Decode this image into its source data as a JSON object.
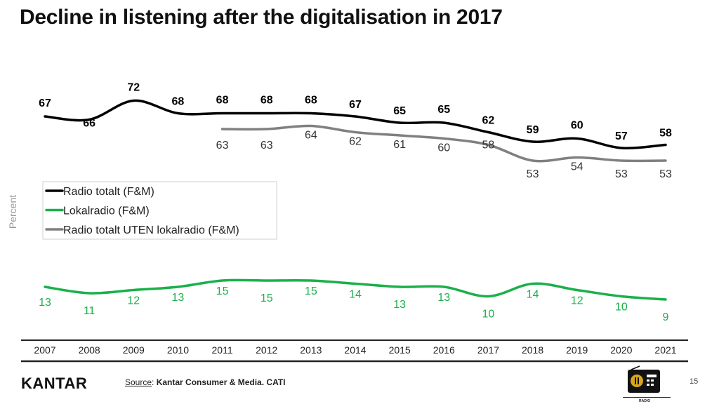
{
  "title": "Decline in listening after the digitalisation in 2017",
  "chart_data": {
    "type": "line",
    "title": "Decline in listening after the digitalisation in 2017",
    "ylabel": "Percent",
    "xlabel": "",
    "ylim": [
      0,
      100
    ],
    "grid": false,
    "legend_position": "left-middle",
    "categories": [
      "2007",
      "2008",
      "2009",
      "2010",
      "2011",
      "2012",
      "2013",
      "2014",
      "2015",
      "2016",
      "2017",
      "2018",
      "2019",
      "2020",
      "2021"
    ],
    "series": [
      {
        "name": "Radio totalt (F&M)",
        "color": "#000000",
        "label_color": "#000000",
        "bold": true,
        "values": [
          67,
          66,
          72,
          68,
          68,
          68,
          68,
          67,
          65,
          65,
          62,
          59,
          60,
          57,
          58
        ]
      },
      {
        "name": "Lokalradio (F&M)",
        "color": "#1ab04b",
        "label_color": "#1ab04b",
        "bold": false,
        "values": [
          13,
          11,
          12,
          13,
          15,
          15,
          15,
          14,
          13,
          13,
          10,
          14,
          12,
          10,
          9
        ]
      },
      {
        "name": "Radio totalt UTEN lokalradio (F&M)",
        "color": "#808080",
        "label_color": "#333333",
        "bold": false,
        "values": [
          null,
          null,
          null,
          null,
          63,
          63,
          64,
          62,
          61,
          60,
          58,
          53,
          54,
          53,
          53
        ]
      }
    ]
  },
  "footer": {
    "logo": "KANTAR",
    "source_label": "Source",
    "source_sep": ": ",
    "source_text": "Kantar Consumer & Media. CATI",
    "page_number": "15",
    "radio_caption": "RADIO"
  }
}
